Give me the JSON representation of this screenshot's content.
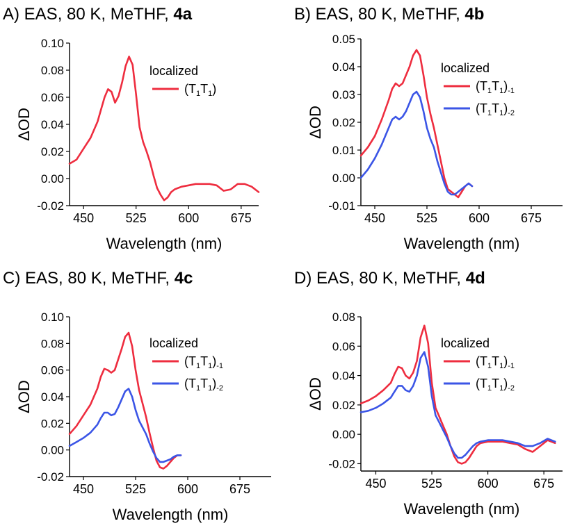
{
  "colors": {
    "red": "#ee2d3f",
    "blue": "#3b55e6",
    "axis": "#000000"
  },
  "chart_data": [
    {
      "id": "a",
      "type": "line",
      "title_prefix": "A) EAS, 80 K, MeTHF, ",
      "title_bold": "4a",
      "xlabel": "Wavelength (nm)",
      "ylabel": "ΔOD",
      "xlim": [
        430,
        700
      ],
      "ylim": [
        -0.02,
        0.1
      ],
      "xticks": [
        450,
        525,
        600,
        675
      ],
      "yticks": [
        "0.10",
        "0.08",
        "0.06",
        "0.04",
        "0.02",
        "0.00",
        "-0.02"
      ],
      "legend_title": "localized",
      "series": [
        {
          "name": "(T1T1)",
          "label_main": "(T",
          "sub1": "1",
          "mid": "T",
          "sub2": "1",
          "tail": ")",
          "label_sub": "",
          "color": "#ee2d3f",
          "x": [
            430,
            440,
            450,
            460,
            470,
            475,
            480,
            485,
            490,
            495,
            500,
            505,
            510,
            515,
            520,
            525,
            530,
            535,
            540,
            545,
            550,
            555,
            560,
            565,
            570,
            575,
            580,
            585,
            590,
            600,
            610,
            620,
            630,
            640,
            650,
            660,
            670,
            680,
            690,
            700
          ],
          "y": [
            0.011,
            0.014,
            0.022,
            0.03,
            0.042,
            0.051,
            0.06,
            0.066,
            0.064,
            0.056,
            0.061,
            0.071,
            0.083,
            0.09,
            0.084,
            0.062,
            0.038,
            0.027,
            0.02,
            0.012,
            0.002,
            -0.007,
            -0.012,
            -0.016,
            -0.014,
            -0.01,
            -0.008,
            -0.007,
            -0.006,
            -0.005,
            -0.004,
            -0.004,
            -0.004,
            -0.005,
            -0.009,
            -0.008,
            -0.004,
            -0.004,
            -0.006,
            -0.01
          ]
        }
      ]
    },
    {
      "id": "b",
      "type": "line",
      "title_prefix": "B) EAS, 80 K, MeTHF, ",
      "title_bold": "4b",
      "xlabel": "Wavelength (nm)",
      "ylabel": "ΔOD",
      "xlim": [
        430,
        720
      ],
      "ylim": [
        -0.01,
        0.05
      ],
      "xticks": [
        450,
        525,
        600,
        675
      ],
      "yticks": [
        "0.05",
        "0.04",
        "0.03",
        "0.02",
        "0.01",
        "0.00",
        "-0.01"
      ],
      "legend_title": "localized",
      "series": [
        {
          "name": "(T1T1)-1",
          "label_main": "(T",
          "sub1": "1",
          "mid": "T",
          "sub2": "1",
          "tail": ")",
          "label_sub": "-1",
          "color": "#ee2d3f",
          "x": [
            430,
            440,
            450,
            460,
            470,
            475,
            480,
            485,
            490,
            495,
            500,
            505,
            510,
            515,
            520,
            525,
            530,
            535,
            540,
            545,
            550,
            555,
            560,
            565,
            570,
            575,
            580,
            585,
            590
          ],
          "y": [
            0.008,
            0.011,
            0.015,
            0.021,
            0.028,
            0.032,
            0.034,
            0.033,
            0.034,
            0.037,
            0.04,
            0.044,
            0.046,
            0.044,
            0.037,
            0.029,
            0.023,
            0.018,
            0.012,
            0.006,
            0.0,
            -0.004,
            -0.005,
            -0.006,
            -0.007,
            -0.005,
            -0.003,
            -0.002,
            -0.003
          ]
        },
        {
          "name": "(T1T1)-2",
          "label_main": "(T",
          "sub1": "1",
          "mid": "T",
          "sub2": "1",
          "tail": ")",
          "label_sub": "-2",
          "color": "#3b55e6",
          "x": [
            430,
            440,
            450,
            460,
            470,
            475,
            480,
            485,
            490,
            495,
            500,
            505,
            510,
            515,
            520,
            525,
            530,
            535,
            540,
            545,
            550,
            555,
            560,
            565,
            570,
            575,
            580,
            585,
            590
          ],
          "y": [
            0.0,
            0.003,
            0.007,
            0.012,
            0.018,
            0.021,
            0.022,
            0.021,
            0.022,
            0.024,
            0.027,
            0.03,
            0.031,
            0.029,
            0.024,
            0.018,
            0.014,
            0.011,
            0.006,
            0.002,
            -0.002,
            -0.005,
            -0.006,
            -0.006,
            -0.005,
            -0.004,
            -0.003,
            -0.002,
            -0.003
          ]
        }
      ]
    },
    {
      "id": "c",
      "type": "line",
      "title_prefix": "C) EAS, 80 K, MeTHF, ",
      "title_bold": "4c",
      "xlabel": "Wavelength (nm)",
      "ylabel": "ΔOD",
      "xlim": [
        430,
        720
      ],
      "ylim": [
        -0.02,
        0.1
      ],
      "xticks": [
        450,
        525,
        600,
        675
      ],
      "yticks": [
        "0.10",
        "0.08",
        "0.06",
        "0.04",
        "0.02",
        "0.00",
        "-0.02"
      ],
      "legend_title": "localized",
      "series": [
        {
          "name": "(T1T1)-1",
          "label_main": "(T",
          "sub1": "1",
          "mid": "T",
          "sub2": "1",
          "tail": ")",
          "label_sub": "-1",
          "color": "#ee2d3f",
          "x": [
            430,
            440,
            450,
            460,
            470,
            475,
            480,
            485,
            490,
            495,
            500,
            505,
            510,
            515,
            520,
            525,
            530,
            535,
            540,
            545,
            550,
            555,
            560,
            565,
            570,
            575,
            580,
            585,
            590
          ],
          "y": [
            0.012,
            0.018,
            0.026,
            0.034,
            0.046,
            0.055,
            0.061,
            0.06,
            0.058,
            0.06,
            0.068,
            0.076,
            0.085,
            0.088,
            0.078,
            0.06,
            0.045,
            0.035,
            0.025,
            0.013,
            0.002,
            -0.008,
            -0.013,
            -0.014,
            -0.012,
            -0.009,
            -0.006,
            -0.004,
            -0.004
          ]
        },
        {
          "name": "(T1T1)-2",
          "label_main": "(T",
          "sub1": "1",
          "mid": "T",
          "sub2": "1",
          "tail": ")",
          "label_sub": "-2",
          "color": "#3b55e6",
          "x": [
            430,
            440,
            450,
            460,
            470,
            475,
            480,
            485,
            490,
            495,
            500,
            505,
            510,
            515,
            520,
            525,
            530,
            535,
            540,
            545,
            550,
            555,
            560,
            565,
            570,
            575,
            580,
            585,
            590
          ],
          "y": [
            0.003,
            0.006,
            0.009,
            0.013,
            0.019,
            0.024,
            0.028,
            0.028,
            0.026,
            0.027,
            0.032,
            0.038,
            0.044,
            0.046,
            0.04,
            0.03,
            0.022,
            0.017,
            0.012,
            0.005,
            -0.001,
            -0.006,
            -0.009,
            -0.009,
            -0.008,
            -0.007,
            -0.005,
            -0.004,
            -0.004
          ]
        }
      ]
    },
    {
      "id": "d",
      "type": "line",
      "title_prefix": "D) EAS, 80 K, MeTHF, ",
      "title_bold": "4d",
      "xlabel": "Wavelength (nm)",
      "ylabel": "ΔOD",
      "xlim": [
        430,
        700
      ],
      "ylim": [
        -0.025,
        0.08
      ],
      "xticks": [
        450,
        525,
        600,
        675
      ],
      "yticks": [
        "0.08",
        "0.06",
        "0.04",
        "0.02",
        "0.00",
        "-0.02"
      ],
      "legend_title": "localized",
      "series": [
        {
          "name": "(T1T1)-1",
          "label_main": "(T",
          "sub1": "1",
          "mid": "T",
          "sub2": "1",
          "tail": ")",
          "label_sub": "-1",
          "color": "#ee2d3f",
          "x": [
            430,
            440,
            450,
            460,
            470,
            475,
            480,
            485,
            490,
            495,
            500,
            505,
            510,
            515,
            520,
            525,
            530,
            535,
            540,
            545,
            550,
            555,
            560,
            565,
            570,
            575,
            580,
            585,
            590,
            600,
            610,
            620,
            630,
            640,
            650,
            660,
            670,
            680,
            690
          ],
          "y": [
            0.021,
            0.023,
            0.026,
            0.03,
            0.035,
            0.041,
            0.046,
            0.045,
            0.04,
            0.038,
            0.042,
            0.05,
            0.066,
            0.074,
            0.062,
            0.035,
            0.018,
            0.012,
            0.006,
            0.0,
            -0.008,
            -0.015,
            -0.019,
            -0.02,
            -0.019,
            -0.016,
            -0.012,
            -0.008,
            -0.006,
            -0.005,
            -0.005,
            -0.005,
            -0.006,
            -0.007,
            -0.01,
            -0.012,
            -0.008,
            -0.004,
            -0.006
          ]
        },
        {
          "name": "(T1T1)-2",
          "label_main": "(T",
          "sub1": "1",
          "mid": "T",
          "sub2": "1",
          "tail": ")",
          "label_sub": "-2",
          "color": "#3b55e6",
          "x": [
            430,
            440,
            450,
            460,
            470,
            475,
            480,
            485,
            490,
            495,
            500,
            505,
            510,
            515,
            520,
            525,
            530,
            535,
            540,
            545,
            550,
            555,
            560,
            565,
            570,
            575,
            580,
            585,
            590,
            600,
            610,
            620,
            630,
            640,
            650,
            660,
            670,
            680,
            690
          ],
          "y": [
            0.015,
            0.016,
            0.018,
            0.021,
            0.025,
            0.029,
            0.033,
            0.033,
            0.03,
            0.029,
            0.033,
            0.04,
            0.052,
            0.056,
            0.046,
            0.026,
            0.013,
            0.008,
            0.003,
            -0.002,
            -0.008,
            -0.013,
            -0.016,
            -0.016,
            -0.014,
            -0.011,
            -0.008,
            -0.006,
            -0.005,
            -0.004,
            -0.004,
            -0.004,
            -0.005,
            -0.006,
            -0.008,
            -0.008,
            -0.006,
            -0.003,
            -0.005
          ]
        }
      ]
    }
  ]
}
